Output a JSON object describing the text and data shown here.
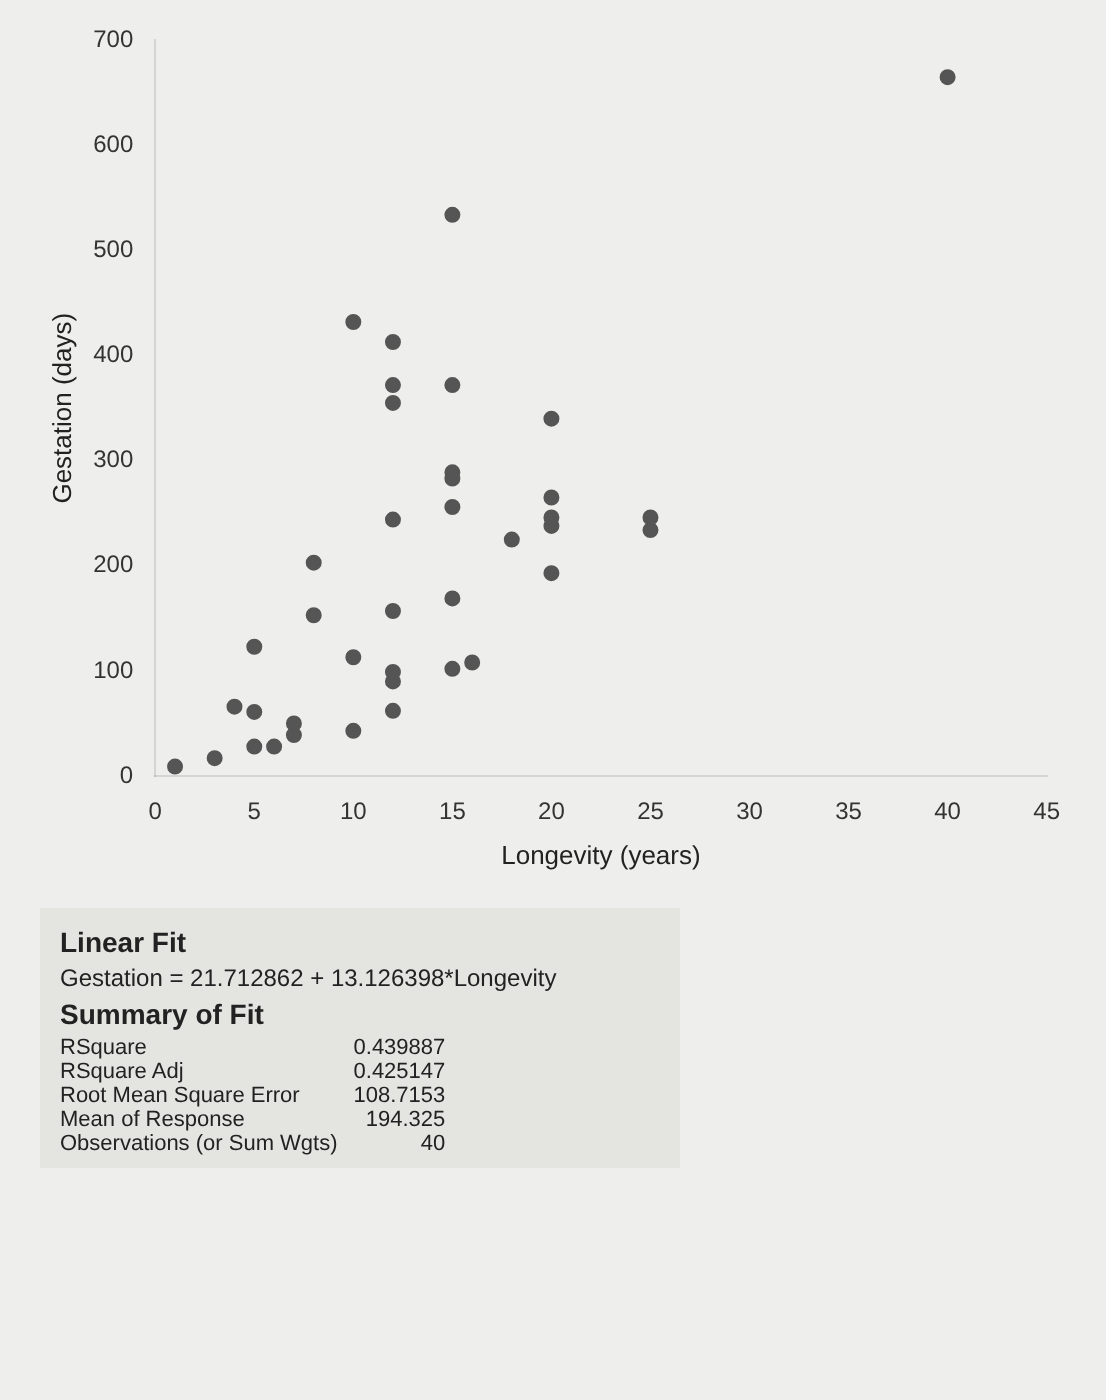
{
  "chart_data": {
    "type": "scatter",
    "xlabel": "Longevity (years)",
    "ylabel": "Gestation (days)",
    "x": [
      1,
      3,
      4,
      5,
      5,
      5,
      6,
      7,
      7,
      8,
      8,
      10,
      10,
      10,
      12,
      12,
      12,
      12,
      12,
      12,
      12,
      12,
      15,
      15,
      15,
      15,
      15,
      15,
      15,
      16,
      18,
      20,
      20,
      20,
      20,
      20,
      25,
      25,
      40
    ],
    "series": [
      {
        "color": "#555555",
        "values": [
          9,
          17,
          66,
          28,
          61,
          123,
          28,
          39,
          50,
          153,
          203,
          43,
          113,
          432,
          62,
          90,
          99,
          157,
          244,
          355,
          372,
          413,
          102,
          169,
          256,
          283,
          289,
          372,
          534,
          108,
          225,
          193,
          238,
          246,
          265,
          340,
          234,
          246,
          665
        ]
      }
    ],
    "xlim": [
      0,
      45
    ],
    "xticks": [
      0,
      5,
      10,
      15,
      20,
      25,
      30,
      35,
      40,
      45
    ],
    "ylim": [
      0,
      700
    ],
    "yticks": [
      0,
      100,
      200,
      300,
      400,
      500,
      600,
      700
    ],
    "grid": false,
    "legend": false,
    "marker": "circle",
    "annotations": [
      "Linear Fit",
      "Gestation = 21.712862 + 13.126398*Longevity",
      "Summary of Fit",
      "RSquare",
      "0.439887",
      "RSquare Adj",
      "0.425147",
      "Root Mean Square Error",
      "108.7153",
      "Mean of Response",
      "194.325",
      "Observations (or Sum Wgts)",
      "40"
    ]
  }
}
